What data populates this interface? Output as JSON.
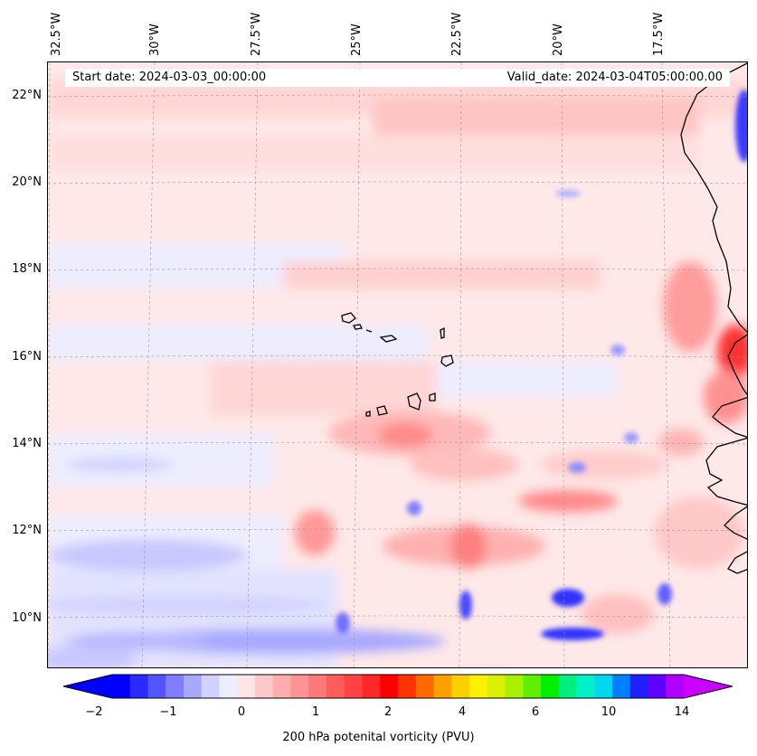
{
  "map": {
    "start_date_label": "Start date: 2024-03-03_00:00:00",
    "valid_date_label": "Valid_date: 2024-03-04T05:00:00.00",
    "lon_labels": [
      "32.5°W",
      "30°W",
      "27.5°W",
      "25°W",
      "22.5°W",
      "20°W",
      "17.5°W"
    ],
    "lat_labels": [
      "22°N",
      "20°N",
      "18°N",
      "16°N",
      "14°N",
      "12°N",
      "10°N"
    ],
    "colorbar": {
      "label": "200 hPa potenital vorticity (PVU)",
      "tick_labels": [
        "−2",
        "−1",
        "0",
        "1",
        "2",
        "4",
        "6",
        "10",
        "14"
      ],
      "colors": [
        "#0000ff",
        "#2a2aff",
        "#5454ff",
        "#7e7eff",
        "#a8a8ff",
        "#d2d2ff",
        "#ededff",
        "#ffe4e4",
        "#ffc9c9",
        "#ffaeae",
        "#ff9393",
        "#ff7878",
        "#ff5d5d",
        "#ff4242",
        "#ff2727",
        "#ff0000",
        "#ff3300",
        "#ff6a00",
        "#ffa000",
        "#ffd000",
        "#fff000",
        "#d9f000",
        "#a8f000",
        "#5ef000",
        "#00f000",
        "#00f080",
        "#00f0c8",
        "#00d8f0",
        "#0080ff",
        "#2020ff",
        "#6000ff",
        "#b000ff"
      ],
      "underflow_color": "#0000ff",
      "overflow_color": "#cc00ff"
    }
  }
}
